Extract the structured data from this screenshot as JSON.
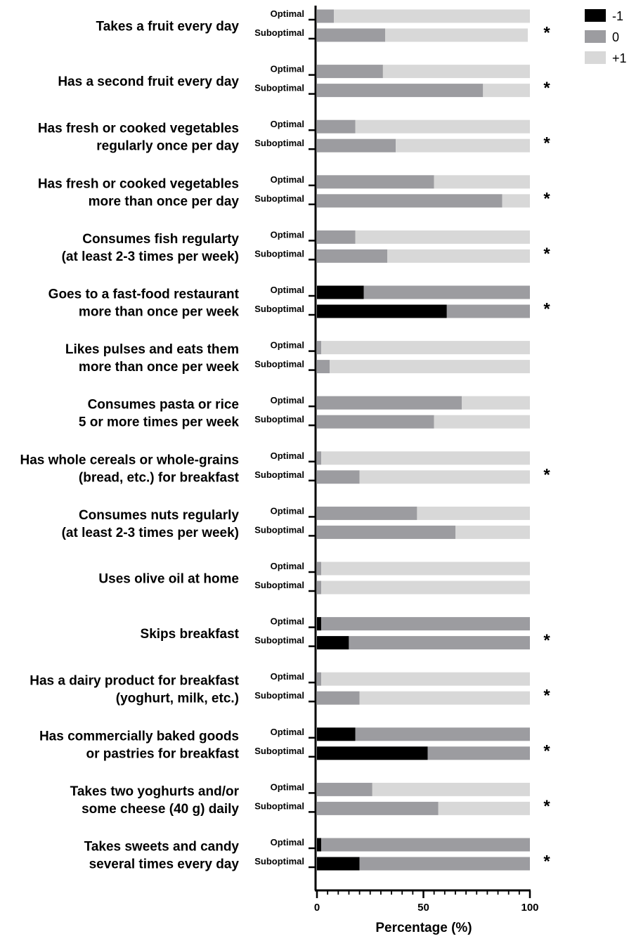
{
  "chart_data": {
    "type": "bar",
    "orientation": "horizontal",
    "stacked": true,
    "xlabel": "Percentage (%)",
    "xlim": [
      0,
      100
    ],
    "xticks": [
      "0",
      "50",
      "100"
    ],
    "groups": [
      "Optimal",
      "Suboptimal"
    ],
    "legend": {
      "placement": "top-right",
      "entries": [
        {
          "label": "-1",
          "color": "#000000"
        },
        {
          "label": "0",
          "color": "#9c9ca0"
        },
        {
          "label": "+1",
          "color": "#d8d8d8"
        }
      ]
    },
    "significance_marker": "*",
    "items": [
      {
        "label": [
          "Takes a fruit every day"
        ],
        "significant": true,
        "optimal": [
          0,
          8,
          92
        ],
        "suboptimal": [
          0,
          32,
          67
        ]
      },
      {
        "label": [
          "Has a second fruit every day"
        ],
        "significant": true,
        "optimal": [
          0,
          31,
          69
        ],
        "suboptimal": [
          0,
          78,
          22
        ]
      },
      {
        "label": [
          "Has fresh or cooked vegetables",
          "regularly once per day"
        ],
        "significant": true,
        "optimal": [
          0,
          18,
          82
        ],
        "suboptimal": [
          0,
          37,
          63
        ]
      },
      {
        "label": [
          "Has fresh or cooked vegetables",
          "more than once per day"
        ],
        "significant": true,
        "optimal": [
          0,
          55,
          45
        ],
        "suboptimal": [
          0,
          87,
          13
        ]
      },
      {
        "label": [
          "Consumes fish regularty",
          "(at least 2-3 times per week)"
        ],
        "significant": true,
        "optimal": [
          0,
          18,
          82
        ],
        "suboptimal": [
          0,
          33,
          67
        ]
      },
      {
        "label": [
          "Goes to a fast-food restaurant",
          "more than once per week"
        ],
        "significant": true,
        "optimal": [
          22,
          78,
          0
        ],
        "suboptimal": [
          61,
          39,
          0
        ]
      },
      {
        "label": [
          "Likes pulses and eats them",
          "more than once per week"
        ],
        "significant": false,
        "optimal": [
          0,
          2,
          98
        ],
        "suboptimal": [
          0,
          6,
          94
        ]
      },
      {
        "label": [
          "Consumes  pasta or  rice",
          "5 or more times per week"
        ],
        "significant": false,
        "optimal": [
          0,
          68,
          32
        ],
        "suboptimal": [
          0,
          55,
          45
        ]
      },
      {
        "label": [
          "Has whole cereals or whole-grains",
          "(bread, etc.) for breakfast"
        ],
        "significant": true,
        "optimal": [
          0,
          2,
          98
        ],
        "suboptimal": [
          0,
          20,
          80
        ]
      },
      {
        "label": [
          "Consumes nuts regularly",
          "(at least 2-3 times per week)"
        ],
        "significant": false,
        "optimal": [
          0,
          47,
          53
        ],
        "suboptimal": [
          0,
          65,
          35
        ]
      },
      {
        "label": [
          "Uses olive oil at home"
        ],
        "significant": false,
        "optimal": [
          0,
          2,
          98
        ],
        "suboptimal": [
          0,
          2,
          98
        ]
      },
      {
        "label": [
          "Skips breakfast"
        ],
        "significant": true,
        "optimal": [
          2,
          98,
          0
        ],
        "suboptimal": [
          15,
          85,
          0
        ]
      },
      {
        "label": [
          "Has a dairy product for breakfast",
          "(yoghurt, milk, etc.)"
        ],
        "significant": true,
        "optimal": [
          0,
          2,
          98
        ],
        "suboptimal": [
          0,
          20,
          80
        ]
      },
      {
        "label": [
          "Has commercially baked goods",
          "or pastries for breakfast"
        ],
        "significant": true,
        "optimal": [
          18,
          82,
          0
        ],
        "suboptimal": [
          52,
          48,
          0
        ]
      },
      {
        "label": [
          "Takes two yoghurts and/or",
          "some cheese (40 g) daily"
        ],
        "significant": true,
        "optimal": [
          0,
          26,
          74
        ],
        "suboptimal": [
          0,
          57,
          43
        ]
      },
      {
        "label": [
          "Takes sweets and candy",
          "several times every day"
        ],
        "significant": true,
        "optimal": [
          2,
          98,
          0
        ],
        "suboptimal": [
          20,
          80,
          0
        ]
      }
    ]
  }
}
